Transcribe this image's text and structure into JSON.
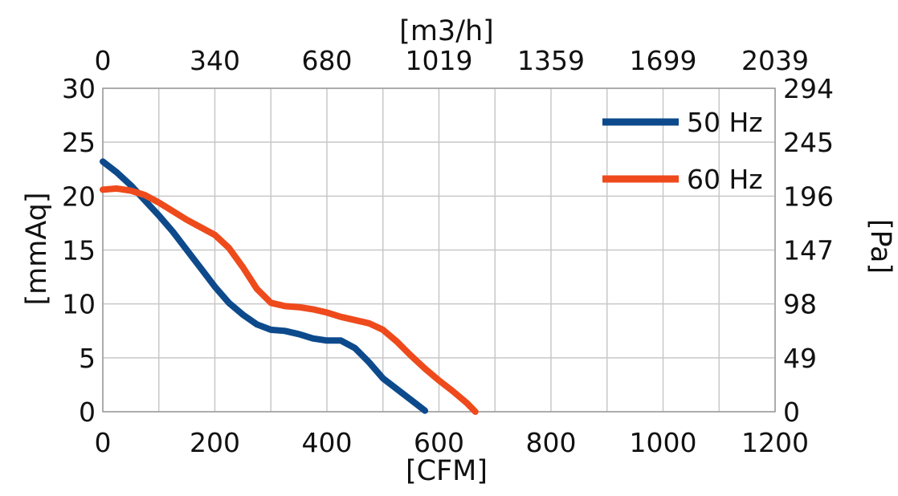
{
  "chart_data": {
    "type": "line",
    "title": "",
    "xlabel": "[CFM]",
    "ylabel": "[mmAq]",
    "x2label": "[m3/h]",
    "y2label": "[Pa]",
    "xlim": [
      0,
      1200
    ],
    "ylim": [
      0,
      30
    ],
    "grid": true,
    "legend_position": "top-right",
    "x_ticks": [
      0,
      200,
      400,
      600,
      800,
      1000,
      1200
    ],
    "y_ticks": [
      0,
      5,
      10,
      15,
      20,
      25,
      30
    ],
    "x2_tick_labels": [
      "0",
      "340",
      "680",
      "1019",
      "1359",
      "1699",
      "2039"
    ],
    "y2_tick_labels": [
      "0",
      "49",
      "98",
      "147",
      "196",
      "245",
      "294"
    ],
    "series": [
      {
        "name": "50 Hz",
        "color": "#0d4a8c",
        "x": [
          0,
          25,
          50,
          75,
          100,
          125,
          150,
          175,
          200,
          225,
          250,
          275,
          300,
          325,
          350,
          375,
          400,
          425,
          450,
          475,
          500,
          525,
          550,
          575
        ],
        "y": [
          23.2,
          22.2,
          21.0,
          19.6,
          18.2,
          16.7,
          15.0,
          13.3,
          11.6,
          10.1,
          9.0,
          8.1,
          7.6,
          7.5,
          7.2,
          6.8,
          6.6,
          6.6,
          5.9,
          4.6,
          3.1,
          2.1,
          1.1,
          0.1
        ]
      },
      {
        "name": "60 Hz",
        "color": "#ee4a1c",
        "x": [
          0,
          25,
          50,
          75,
          100,
          125,
          150,
          175,
          200,
          225,
          250,
          275,
          300,
          325,
          350,
          375,
          400,
          425,
          450,
          475,
          500,
          525,
          550,
          575,
          600,
          625,
          650,
          665
        ],
        "y": [
          20.6,
          20.7,
          20.5,
          20.1,
          19.4,
          18.6,
          17.8,
          17.1,
          16.4,
          15.2,
          13.4,
          11.4,
          10.1,
          9.8,
          9.7,
          9.5,
          9.2,
          8.8,
          8.5,
          8.2,
          7.6,
          6.5,
          5.2,
          4.0,
          2.9,
          1.9,
          0.8,
          0.0
        ]
      }
    ]
  }
}
